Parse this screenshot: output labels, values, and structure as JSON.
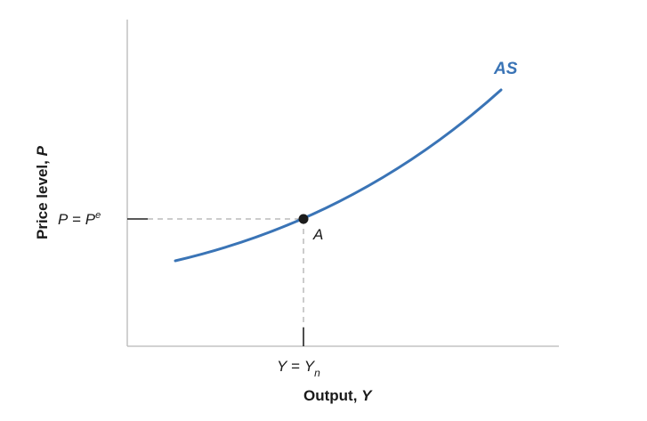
{
  "diagram": {
    "curve": {
      "name": "AS",
      "color": "#3a74b6"
    },
    "equilibrium": {
      "point_label": "A",
      "price_label": {
        "lhs": "P",
        "eq": " = ",
        "rhs": "P",
        "sup": "e"
      },
      "output_label": {
        "lhs": "Y",
        "eq": " = ",
        "rhs": "Y",
        "sub": "n"
      }
    },
    "axes": {
      "y_label": {
        "text": "Price level, ",
        "var": "P"
      },
      "x_label": {
        "text": "Output, ",
        "var": "Y"
      }
    }
  }
}
